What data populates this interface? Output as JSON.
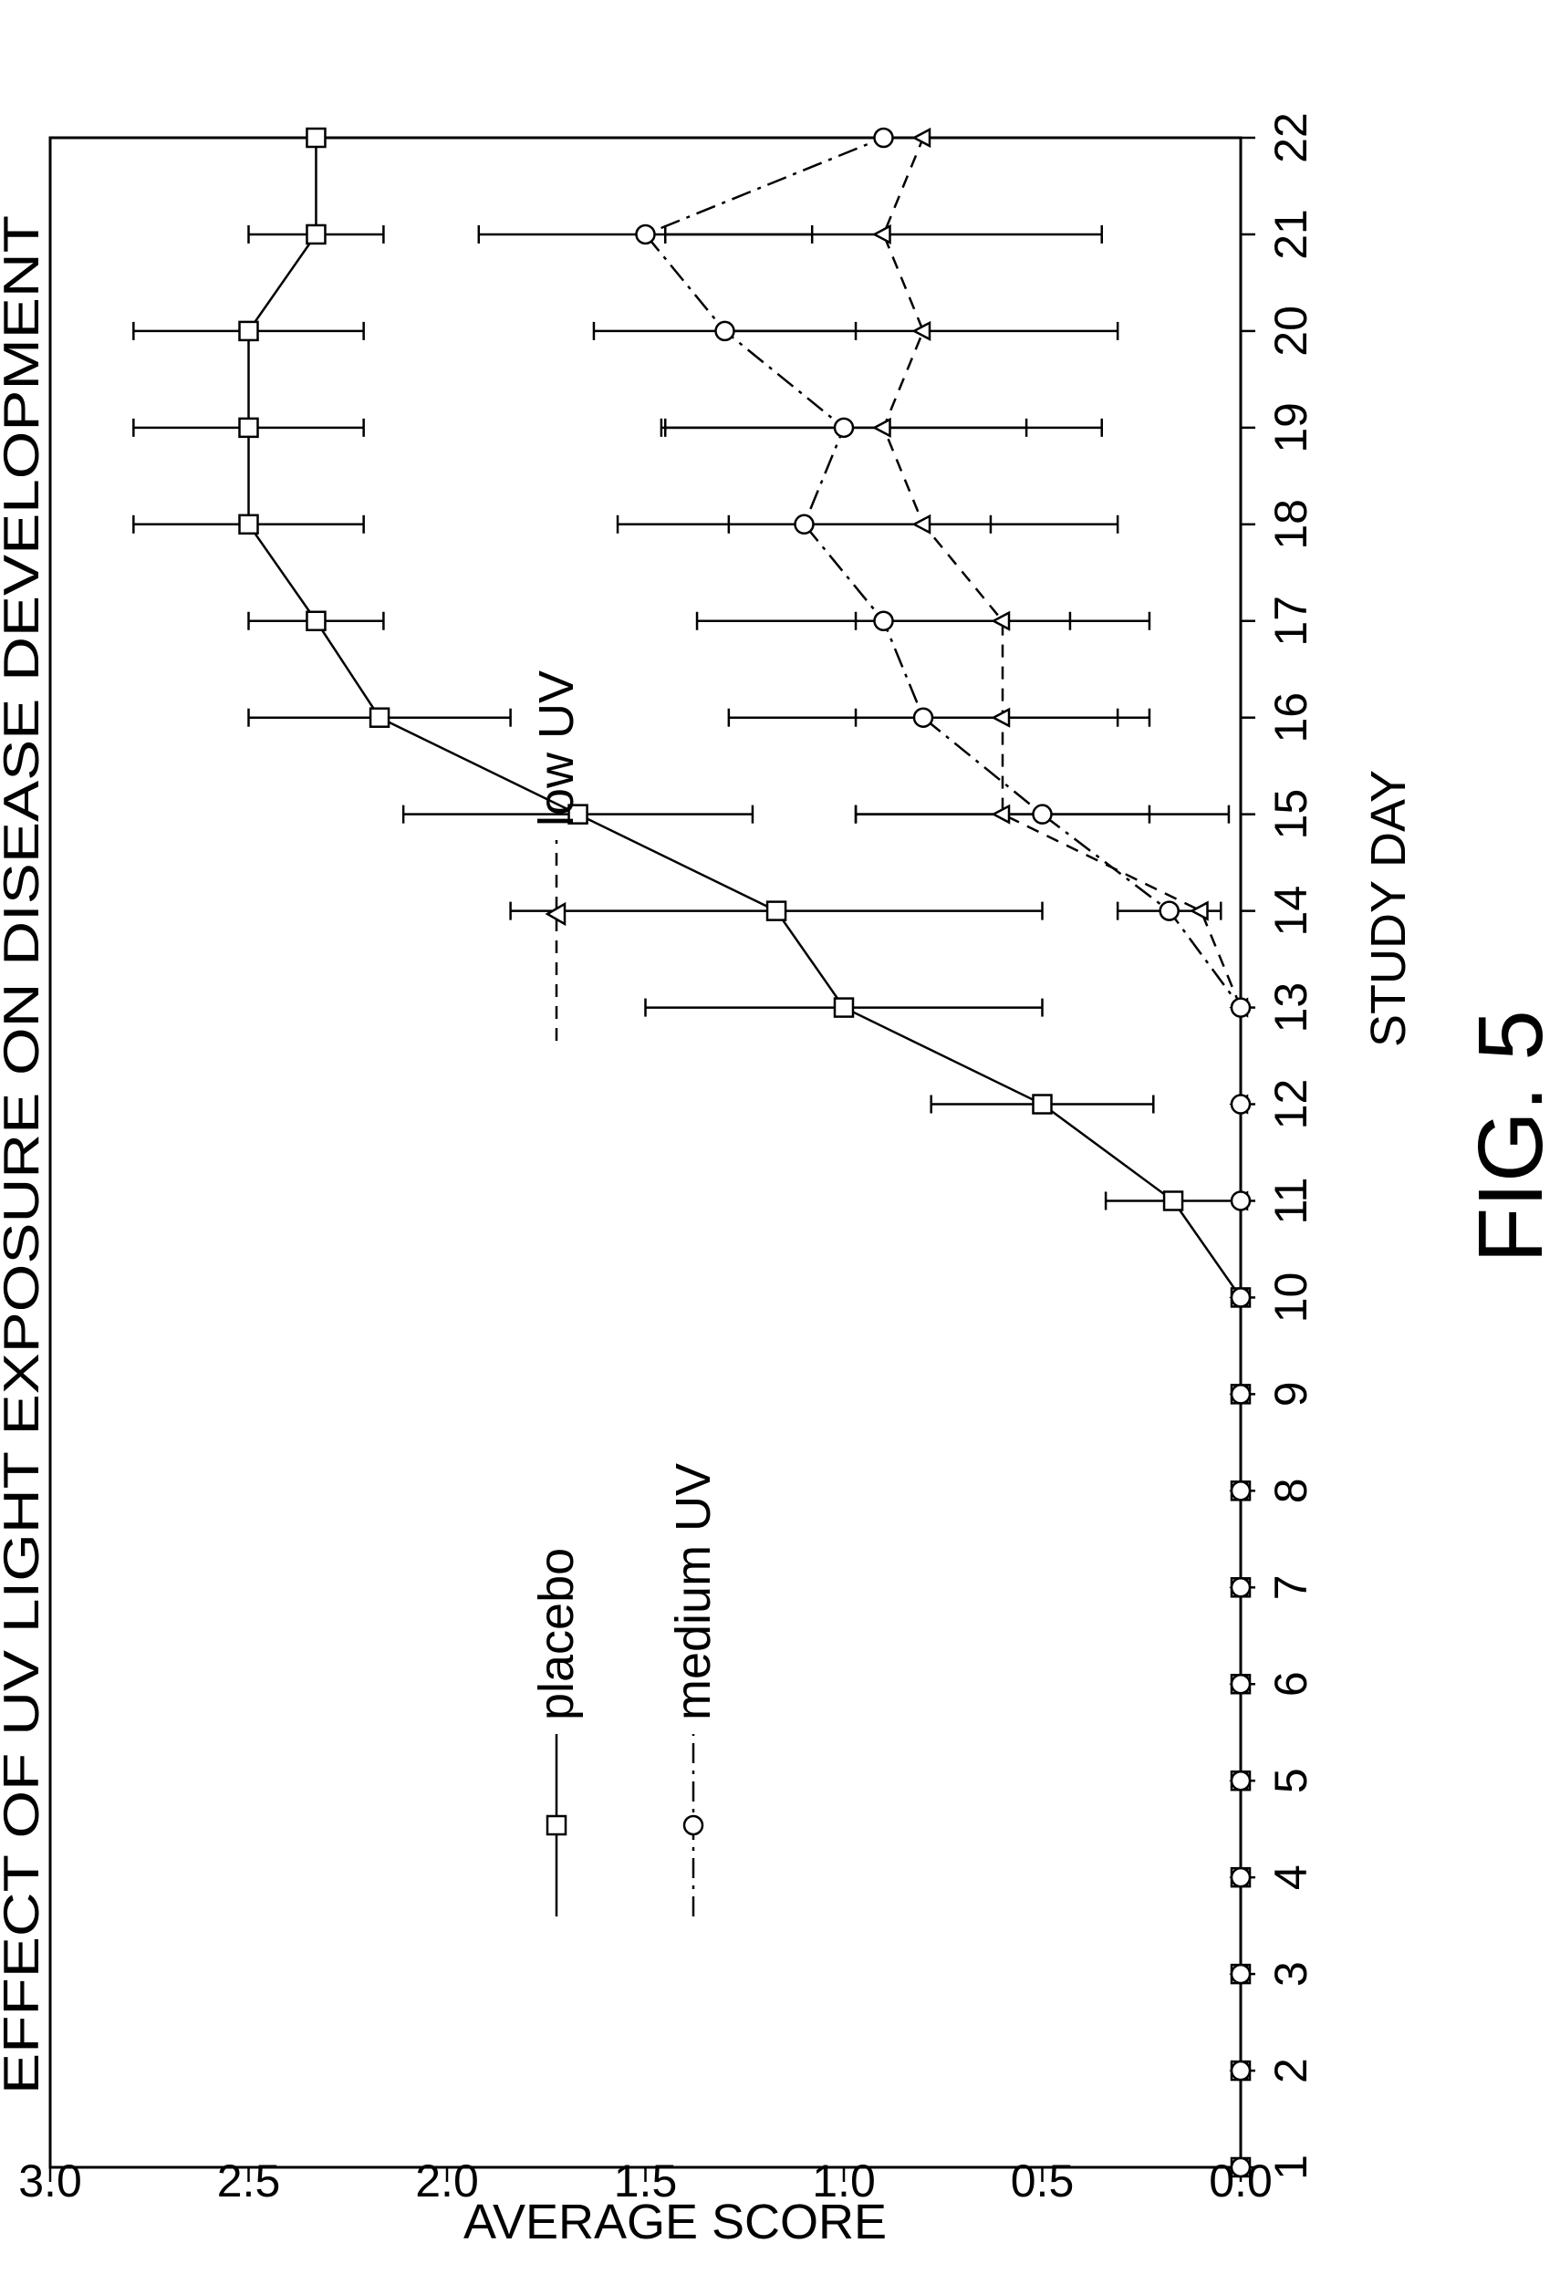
{
  "chart_data": {
    "type": "line",
    "title": "EFFECT OF UV LIGHT EXPOSURE ON DISEASE DEVELOPMENT",
    "xlabel": "STUDY DAY",
    "ylabel": "AVERAGE SCORE",
    "figure_label": "FIG. 5",
    "x": [
      1,
      2,
      3,
      4,
      5,
      6,
      7,
      8,
      9,
      10,
      11,
      12,
      13,
      14,
      15,
      16,
      17,
      18,
      19,
      20,
      21,
      22
    ],
    "x_tick_labels": [
      "1",
      "2",
      "3",
      "4",
      "5",
      "6",
      "7",
      "8",
      "9",
      "10",
      "11",
      "12",
      "13",
      "14",
      "15",
      "16",
      "17",
      "18",
      "19",
      "20",
      "21",
      "22"
    ],
    "y_tick_labels": [
      "0.0",
      "0.5",
      "1.0",
      "1.5",
      "2.0",
      "2.5",
      "3.0"
    ],
    "xlim": [
      1,
      22
    ],
    "ylim": [
      0,
      3.0
    ],
    "grid": false,
    "orientation": "rotated 90 degrees counter-clockwise",
    "legend_position": "inside, near the upper-left of the plot",
    "series": [
      {
        "name": "placebo",
        "line_style": "solid",
        "marker": "square",
        "values": [
          0,
          0,
          0,
          0,
          0,
          0,
          0,
          0,
          0,
          0,
          0.17,
          0.5,
          1.0,
          1.17,
          1.67,
          2.17,
          2.33,
          2.5,
          2.5,
          2.5,
          2.33,
          2.33
        ],
        "err": [
          0,
          0,
          0,
          0,
          0,
          0,
          0,
          0,
          0,
          0,
          0.17,
          0.28,
          0.5,
          0.67,
          0.44,
          0.33,
          0.17,
          0.29,
          0.29,
          0.29,
          0.17,
          0
        ]
      },
      {
        "name": "low UV",
        "line_style": "dashed",
        "marker": "triangle",
        "values": [
          0,
          0,
          0,
          0,
          0,
          0,
          0,
          0,
          0,
          0,
          0,
          0,
          0,
          0.1,
          0.6,
          0.6,
          0.6,
          0.8,
          0.9,
          0.8,
          0.9,
          0.8
        ],
        "err": [
          0,
          0,
          0,
          0,
          0,
          0,
          0,
          0,
          0,
          0,
          0,
          0,
          0,
          0,
          0.37,
          0.37,
          0.37,
          0.49,
          0.55,
          0.49,
          0.55,
          0
        ]
      },
      {
        "name": "medium UV",
        "line_style": "dash-dot",
        "marker": "circle",
        "values": [
          0,
          0,
          0,
          0,
          0,
          0,
          0,
          0,
          0,
          0,
          0,
          0,
          0,
          0.18,
          0.5,
          0.8,
          0.9,
          1.1,
          1.0,
          1.3,
          1.5,
          0.9
        ],
        "err": [
          0,
          0,
          0,
          0,
          0,
          0,
          0,
          0,
          0,
          0,
          0,
          0,
          0,
          0.13,
          0.47,
          0.49,
          0.47,
          0.47,
          0.46,
          0.33,
          0.42,
          0
        ]
      }
    ],
    "colors": {
      "line": "#000000",
      "background": "#ffffff"
    }
  }
}
